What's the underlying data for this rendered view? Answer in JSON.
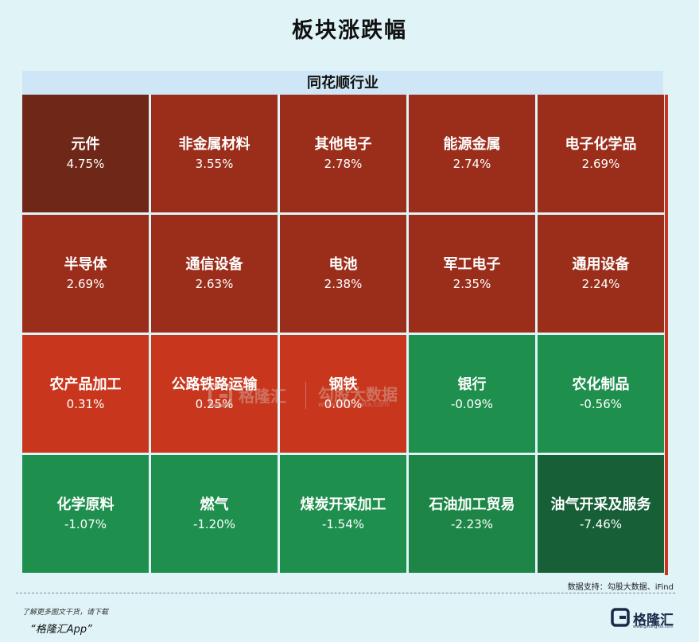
{
  "title": "板块涨跌幅",
  "watermark": {
    "brand": "格隆汇",
    "secondary": "勾股大数据",
    "url": "www.gogudata.com"
  },
  "source": "数据支持：勾股大数据、iFind",
  "footer": {
    "line1": "了解更多图文干货，请下载",
    "line2": "“格隆汇App”",
    "brand": "格隆汇",
    "brand_url": "www.gelonghui.com"
  },
  "colors": {
    "strong_up": "#6f2718",
    "up": "#9b2e1b",
    "mild_up": "#c8371d",
    "mild_down": "#1e8c4d",
    "down": "#1f8f4e",
    "strong_down": "#165f37"
  },
  "chart_data": {
    "type": "treemap",
    "header": "同花顺行业",
    "cells": [
      {
        "name": "元件",
        "value": 4.75,
        "label": "4.75%",
        "color": "#6f2718"
      },
      {
        "name": "非金属材料",
        "value": 3.55,
        "label": "3.55%",
        "color": "#9b2e1b"
      },
      {
        "name": "其他电子",
        "value": 2.78,
        "label": "2.78%",
        "color": "#9b2e1b"
      },
      {
        "name": "能源金属",
        "value": 2.74,
        "label": "2.74%",
        "color": "#9b2e1b"
      },
      {
        "name": "电子化学品",
        "value": 2.69,
        "label": "2.69%",
        "color": "#9b2e1b"
      },
      {
        "name": "半导体",
        "value": 2.69,
        "label": "2.69%",
        "color": "#9b2e1b"
      },
      {
        "name": "通信设备",
        "value": 2.63,
        "label": "2.63%",
        "color": "#9b2e1b"
      },
      {
        "name": "电池",
        "value": 2.38,
        "label": "2.38%",
        "color": "#9b2e1b"
      },
      {
        "name": "军工电子",
        "value": 2.35,
        "label": "2.35%",
        "color": "#9b2e1b"
      },
      {
        "name": "通用设备",
        "value": 2.24,
        "label": "2.24%",
        "color": "#9b2e1b"
      },
      {
        "name": "农产品加工",
        "value": 0.31,
        "label": "0.31%",
        "color": "#c8371d"
      },
      {
        "name": "公路铁路运输",
        "value": 0.25,
        "label": "0.25%",
        "color": "#c8371d"
      },
      {
        "name": "钢铁",
        "value": 0.0,
        "label": "0.00%",
        "color": "#c8371d"
      },
      {
        "name": "银行",
        "value": -0.09,
        "label": "-0.09%",
        "color": "#1f8f4e"
      },
      {
        "name": "农化制品",
        "value": -0.56,
        "label": "-0.56%",
        "color": "#1f8f4e"
      },
      {
        "name": "化学原料",
        "value": -1.07,
        "label": "-1.07%",
        "color": "#1f8f4e"
      },
      {
        "name": "燃气",
        "value": -1.2,
        "label": "-1.20%",
        "color": "#1f8f4e"
      },
      {
        "name": "煤炭开采加工",
        "value": -1.54,
        "label": "-1.54%",
        "color": "#1f8f4e"
      },
      {
        "name": "石油加工贸易",
        "value": -2.23,
        "label": "-2.23%",
        "color": "#1d8647"
      },
      {
        "name": "油气开采及服务",
        "value": -7.46,
        "label": "-7.46%",
        "color": "#165f37"
      }
    ]
  }
}
